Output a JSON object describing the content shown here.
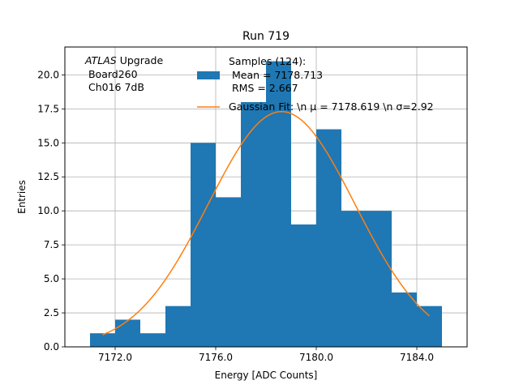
{
  "chart_data": {
    "type": "bar",
    "title": "Run 719",
    "xlabel": "Energy [ADC Counts]",
    "ylabel": "Entries",
    "xlim": [
      7170.0,
      7186.0
    ],
    "ylim": [
      0,
      22.05
    ],
    "grid": true,
    "xticks": [
      7172.0,
      7176.0,
      7180.0,
      7184.0
    ],
    "xtick_labels": [
      "7172.0",
      "7176.0",
      "7180.0",
      "7184.0"
    ],
    "yticks": [
      0.0,
      2.5,
      5.0,
      7.5,
      10.0,
      12.5,
      15.0,
      17.5,
      20.0
    ],
    "ytick_labels": [
      "0.0",
      "2.5",
      "5.0",
      "7.5",
      "10.0",
      "12.5",
      "15.0",
      "17.5",
      "20.0"
    ],
    "histogram": {
      "bin_edges": [
        7171,
        7172,
        7173,
        7174,
        7175,
        7176,
        7177,
        7178,
        7179,
        7180,
        7181,
        7182,
        7183,
        7184,
        7185
      ],
      "counts": [
        1,
        2,
        1,
        3,
        15,
        11,
        18,
        21,
        9,
        16,
        10,
        10,
        4,
        3
      ],
      "color": "#1f77b4"
    },
    "fit": {
      "mu": 7178.619,
      "sigma": 2.92,
      "amplitude": 17.3,
      "x_range": [
        7171.5,
        7184.5
      ],
      "color": "#ff7f0e"
    },
    "annotation": {
      "italic": "ATLAS",
      "line1_rest": " Upgrade",
      "line2": " Board260",
      "line3": " Ch016 7dB"
    },
    "legend": {
      "position": "top-center",
      "samples_line1": "Samples (124):",
      "samples_line2": " Mean = 7178.713",
      "samples_line3": " RMS = 2.667",
      "fit_label": "Gaussian Fit: \\n μ = 7178.619 \\n σ=2.92"
    }
  }
}
